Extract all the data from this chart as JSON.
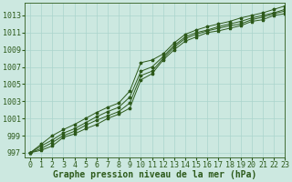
{
  "x_label": "Graphe pression niveau de la mer (hPa)",
  "xlim": [
    -0.5,
    23
  ],
  "ylim": [
    996.5,
    1014.5
  ],
  "yticks": [
    997,
    999,
    1001,
    1003,
    1005,
    1007,
    1009,
    1011,
    1013
  ],
  "xticks": [
    0,
    1,
    2,
    3,
    4,
    5,
    6,
    7,
    8,
    9,
    10,
    11,
    12,
    13,
    14,
    15,
    16,
    17,
    18,
    19,
    20,
    21,
    22,
    23
  ],
  "bg_color": "#cce8e0",
  "grid_color": "#aad4cc",
  "line_color": "#2d5a1b",
  "marker_color": "#2d5a1b",
  "series": [
    [
      997.0,
      997.3,
      997.8,
      998.8,
      999.2,
      999.8,
      1000.3,
      1001.0,
      1001.5,
      1002.2,
      1005.5,
      1006.2,
      1007.8,
      1009.0,
      1010.0,
      1010.5,
      1011.0,
      1011.2,
      1011.5,
      1011.8,
      1012.3,
      1012.5,
      1013.0,
      1013.2
    ],
    [
      997.0,
      997.5,
      998.2,
      999.0,
      999.5,
      1000.2,
      1000.8,
      1001.3,
      1001.8,
      1002.8,
      1006.0,
      1006.5,
      1008.0,
      1009.3,
      1010.3,
      1010.8,
      1011.2,
      1011.5,
      1011.8,
      1012.0,
      1012.5,
      1012.8,
      1013.2,
      1013.5
    ],
    [
      997.0,
      997.8,
      998.5,
      999.3,
      999.8,
      1000.5,
      1001.2,
      1001.8,
      1002.3,
      1003.5,
      1006.5,
      1007.0,
      1008.2,
      1009.5,
      1010.5,
      1011.0,
      1011.3,
      1011.7,
      1012.0,
      1012.3,
      1012.7,
      1013.0,
      1013.3,
      1013.7
    ],
    [
      997.0,
      998.0,
      999.0,
      999.7,
      1000.3,
      1001.0,
      1001.7,
      1002.3,
      1002.8,
      1004.2,
      1007.5,
      1007.8,
      1008.5,
      1009.8,
      1010.8,
      1011.3,
      1011.7,
      1012.0,
      1012.3,
      1012.7,
      1013.0,
      1013.3,
      1013.7,
      1014.1
    ]
  ],
  "fontsize_label": 7,
  "fontsize_tick": 6
}
